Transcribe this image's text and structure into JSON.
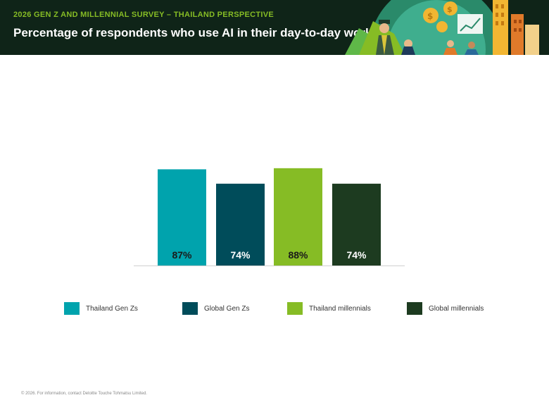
{
  "header": {
    "kicker": "2026 GEN Z AND MILLENNIAL SURVEY – THAILAND PERSPECTIVE",
    "title": "Percentage of respondents who use AI in their day-to-day work"
  },
  "chart_data": {
    "type": "bar",
    "categories": [
      "Thailand Gen Zs",
      "Global Gen Zs",
      "Thailand millennials",
      "Global millennials"
    ],
    "values": [
      87,
      74,
      88,
      74
    ],
    "value_labels": [
      "87%",
      "74%",
      "88%",
      "74%"
    ],
    "colors": [
      "#00a3ad",
      "#004c5a",
      "#86bc25",
      "#1d3b20"
    ],
    "ylim": [
      0,
      100
    ],
    "grid": false,
    "legend_position": "bottom"
  },
  "footer": {
    "text": "© 2026. For information, contact Deloitte Touche Tohmatsu Limited."
  }
}
